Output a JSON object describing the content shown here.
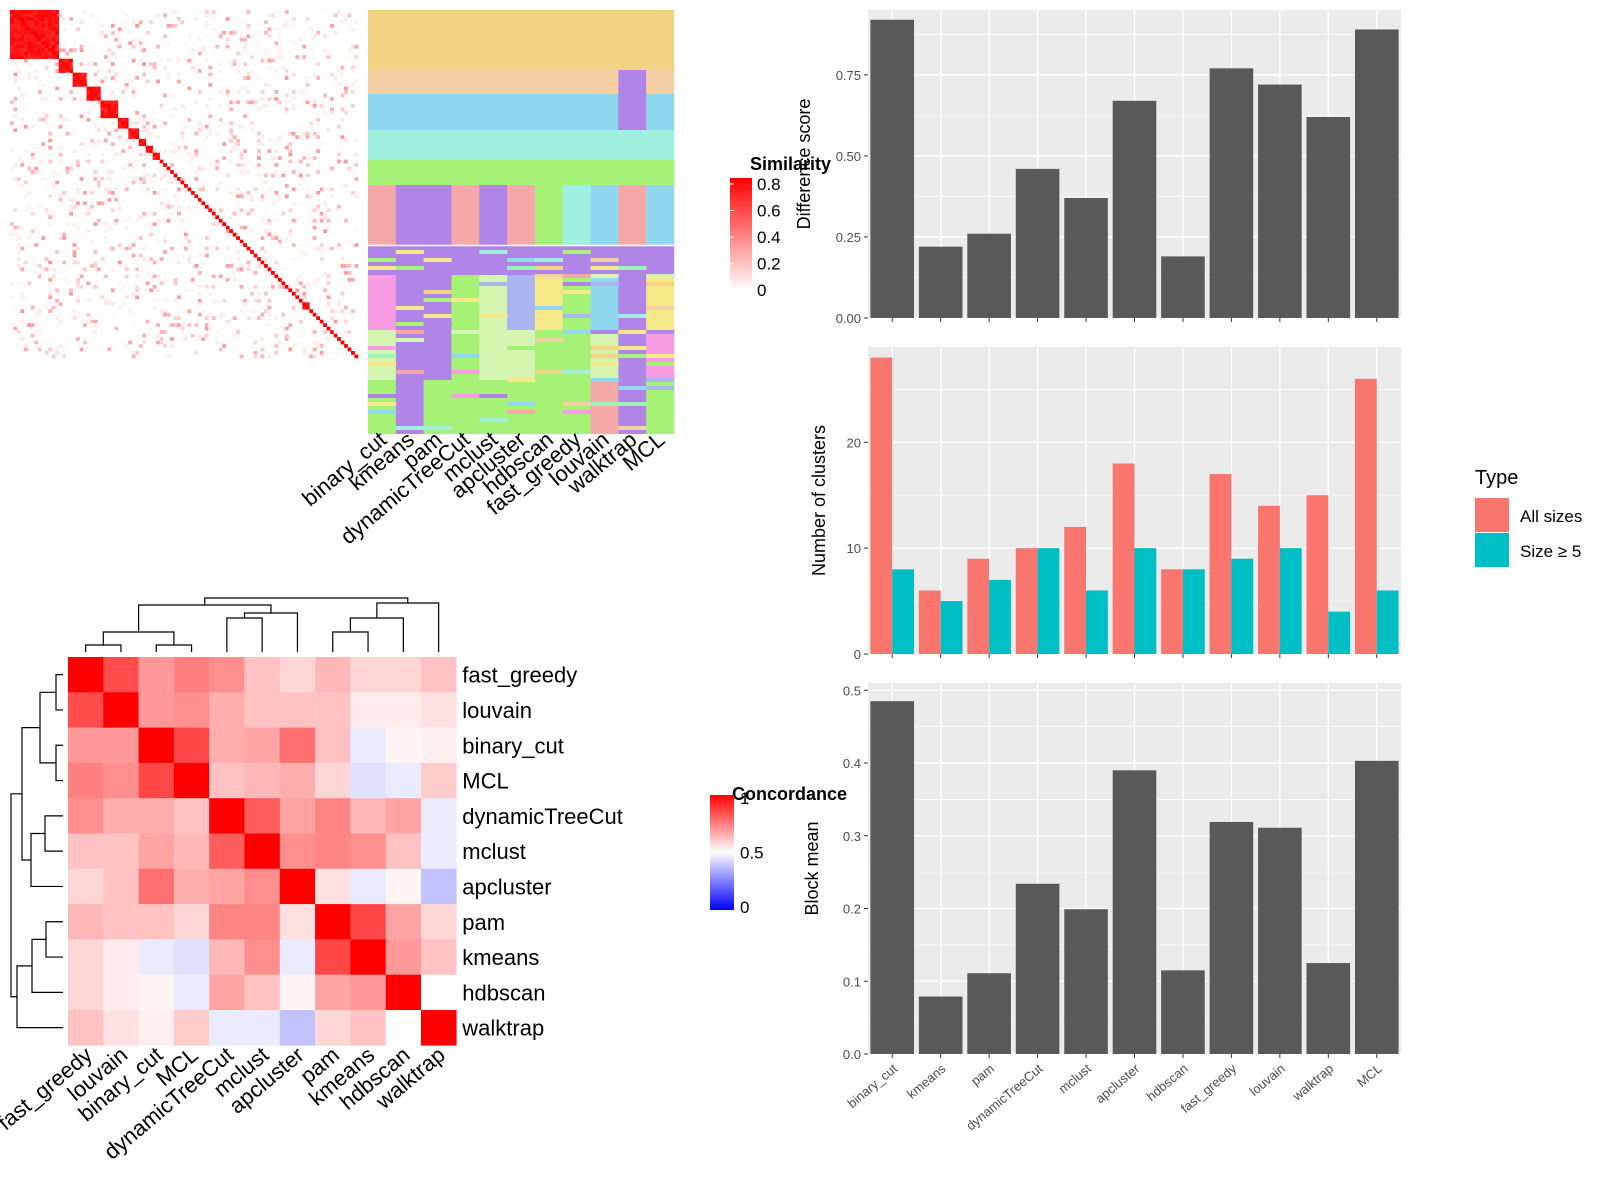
{
  "methods": [
    "binary_cut",
    "kmeans",
    "pam",
    "dynamicTreeCut",
    "mclust",
    "apcluster",
    "hdbscan",
    "fast_greedy",
    "louvain",
    "walktrap",
    "MCL"
  ],
  "similarity_legend": {
    "title": "Similarity",
    "ticks": [
      "0",
      "0.2",
      "0.4",
      "0.6",
      "0.8"
    ],
    "values": [
      0,
      0.2,
      0.4,
      0.6,
      0.8
    ]
  },
  "concordance_legend": {
    "title": "Concordance",
    "ticks": [
      "0",
      "0.5",
      "1"
    ],
    "values": [
      0,
      0.5,
      1
    ]
  },
  "type_legend": {
    "title": "Type",
    "items": [
      {
        "label": "All sizes",
        "color": "#F8766D"
      },
      {
        "label": "Size ≥ 5",
        "color": "#00BFC4"
      }
    ]
  },
  "colors": {
    "bar": "#595959",
    "panel": "#EBEBEB",
    "all_sizes": "#F8766D",
    "size5": "#00BFC4",
    "heat_high": "#FF0000",
    "heat_mid": "#FFFFFF",
    "heat_low": "#0000FF"
  },
  "chart_data": [
    {
      "type": "heatmap",
      "id": "similarity_matrix",
      "title": "",
      "legend_title": "Similarity",
      "scale": [
        0,
        0.8
      ]
    },
    {
      "type": "heatmap",
      "id": "cluster_assignments",
      "x_labels": [
        "binary_cut",
        "kmeans",
        "pam",
        "dynamicTreeCut",
        "mclust",
        "apcluster",
        "hdbscan",
        "fast_greedy",
        "louvain",
        "walktrap",
        "MCL"
      ]
    },
    {
      "type": "bar",
      "id": "difference_score",
      "ylabel": "Difference score",
      "categories": [
        "binary_cut",
        "kmeans",
        "pam",
        "dynamicTreeCut",
        "mclust",
        "apcluster",
        "hdbscan",
        "fast_greedy",
        "louvain",
        "walktrap",
        "MCL"
      ],
      "values": [
        0.92,
        0.22,
        0.26,
        0.46,
        0.37,
        0.67,
        0.19,
        0.77,
        0.72,
        0.62,
        0.89
      ],
      "ylim": [
        0,
        0.95
      ],
      "yticks": [
        "0.00",
        "0.25",
        "0.50",
        "0.75"
      ]
    },
    {
      "type": "bar",
      "id": "number_of_clusters",
      "ylabel": "Number of clusters",
      "legend_title": "Type",
      "categories": [
        "binary_cut",
        "kmeans",
        "pam",
        "dynamicTreeCut",
        "mclust",
        "apcluster",
        "hdbscan",
        "fast_greedy",
        "louvain",
        "walktrap",
        "MCL"
      ],
      "series": [
        {
          "name": "All sizes",
          "values": [
            28,
            6,
            9,
            10,
            12,
            18,
            8,
            17,
            14,
            15,
            26
          ]
        },
        {
          "name": "Size ≥ 5",
          "values": [
            8,
            5,
            7,
            10,
            6,
            10,
            8,
            9,
            10,
            4,
            6
          ]
        }
      ],
      "ylim": [
        0,
        29
      ],
      "yticks": [
        "0",
        "10",
        "20"
      ]
    },
    {
      "type": "bar",
      "id": "block_mean",
      "ylabel": "Block mean",
      "categories": [
        "binary_cut",
        "kmeans",
        "pam",
        "dynamicTreeCut",
        "mclust",
        "apcluster",
        "hdbscan",
        "fast_greedy",
        "louvain",
        "walktrap",
        "MCL"
      ],
      "values": [
        0.485,
        0.079,
        0.111,
        0.234,
        0.199,
        0.39,
        0.115,
        0.319,
        0.311,
        0.125,
        0.403
      ],
      "ylim": [
        0,
        0.5
      ],
      "yticks": [
        "0.0",
        "0.1",
        "0.2",
        "0.3",
        "0.4",
        "0.5"
      ]
    },
    {
      "type": "heatmap",
      "id": "concordance",
      "legend_title": "Concordance",
      "rows": [
        "fast_greedy",
        "louvain",
        "binary_cut",
        "MCL",
        "dynamicTreeCut",
        "mclust",
        "apcluster",
        "pam",
        "kmeans",
        "hdbscan",
        "walktrap"
      ],
      "cols": [
        "fast_greedy",
        "louvain",
        "binary_cut",
        "MCL",
        "dynamicTreeCut",
        "mclust",
        "apcluster",
        "pam",
        "kmeans",
        "hdbscan",
        "walktrap"
      ],
      "values": [
        [
          1.0,
          0.85,
          0.7,
          0.75,
          0.72,
          0.62,
          0.58,
          0.64,
          0.58,
          0.58,
          0.62
        ],
        [
          0.85,
          1.0,
          0.7,
          0.72,
          0.66,
          0.62,
          0.62,
          0.62,
          0.54,
          0.54,
          0.56
        ],
        [
          0.7,
          0.7,
          1.0,
          0.86,
          0.66,
          0.68,
          0.78,
          0.62,
          0.46,
          0.52,
          0.53
        ],
        [
          0.75,
          0.72,
          0.86,
          1.0,
          0.62,
          0.64,
          0.66,
          0.58,
          0.44,
          0.46,
          0.6
        ],
        [
          0.72,
          0.66,
          0.66,
          0.62,
          1.0,
          0.82,
          0.68,
          0.74,
          0.64,
          0.68,
          0.46
        ],
        [
          0.62,
          0.62,
          0.68,
          0.64,
          0.82,
          1.0,
          0.72,
          0.74,
          0.72,
          0.62,
          0.46
        ],
        [
          0.58,
          0.62,
          0.78,
          0.66,
          0.68,
          0.72,
          1.0,
          0.56,
          0.46,
          0.52,
          0.38
        ],
        [
          0.64,
          0.62,
          0.62,
          0.58,
          0.74,
          0.74,
          0.56,
          1.0,
          0.86,
          0.68,
          0.58
        ],
        [
          0.58,
          0.54,
          0.46,
          0.44,
          0.64,
          0.72,
          0.46,
          0.86,
          1.0,
          0.7,
          0.62
        ],
        [
          0.58,
          0.54,
          0.52,
          0.46,
          0.68,
          0.62,
          0.52,
          0.68,
          0.7,
          1.0,
          0.5
        ],
        [
          0.62,
          0.56,
          0.53,
          0.6,
          0.46,
          0.46,
          0.38,
          0.58,
          0.62,
          0.5,
          1.0
        ]
      ],
      "scale": [
        0,
        1
      ]
    }
  ]
}
